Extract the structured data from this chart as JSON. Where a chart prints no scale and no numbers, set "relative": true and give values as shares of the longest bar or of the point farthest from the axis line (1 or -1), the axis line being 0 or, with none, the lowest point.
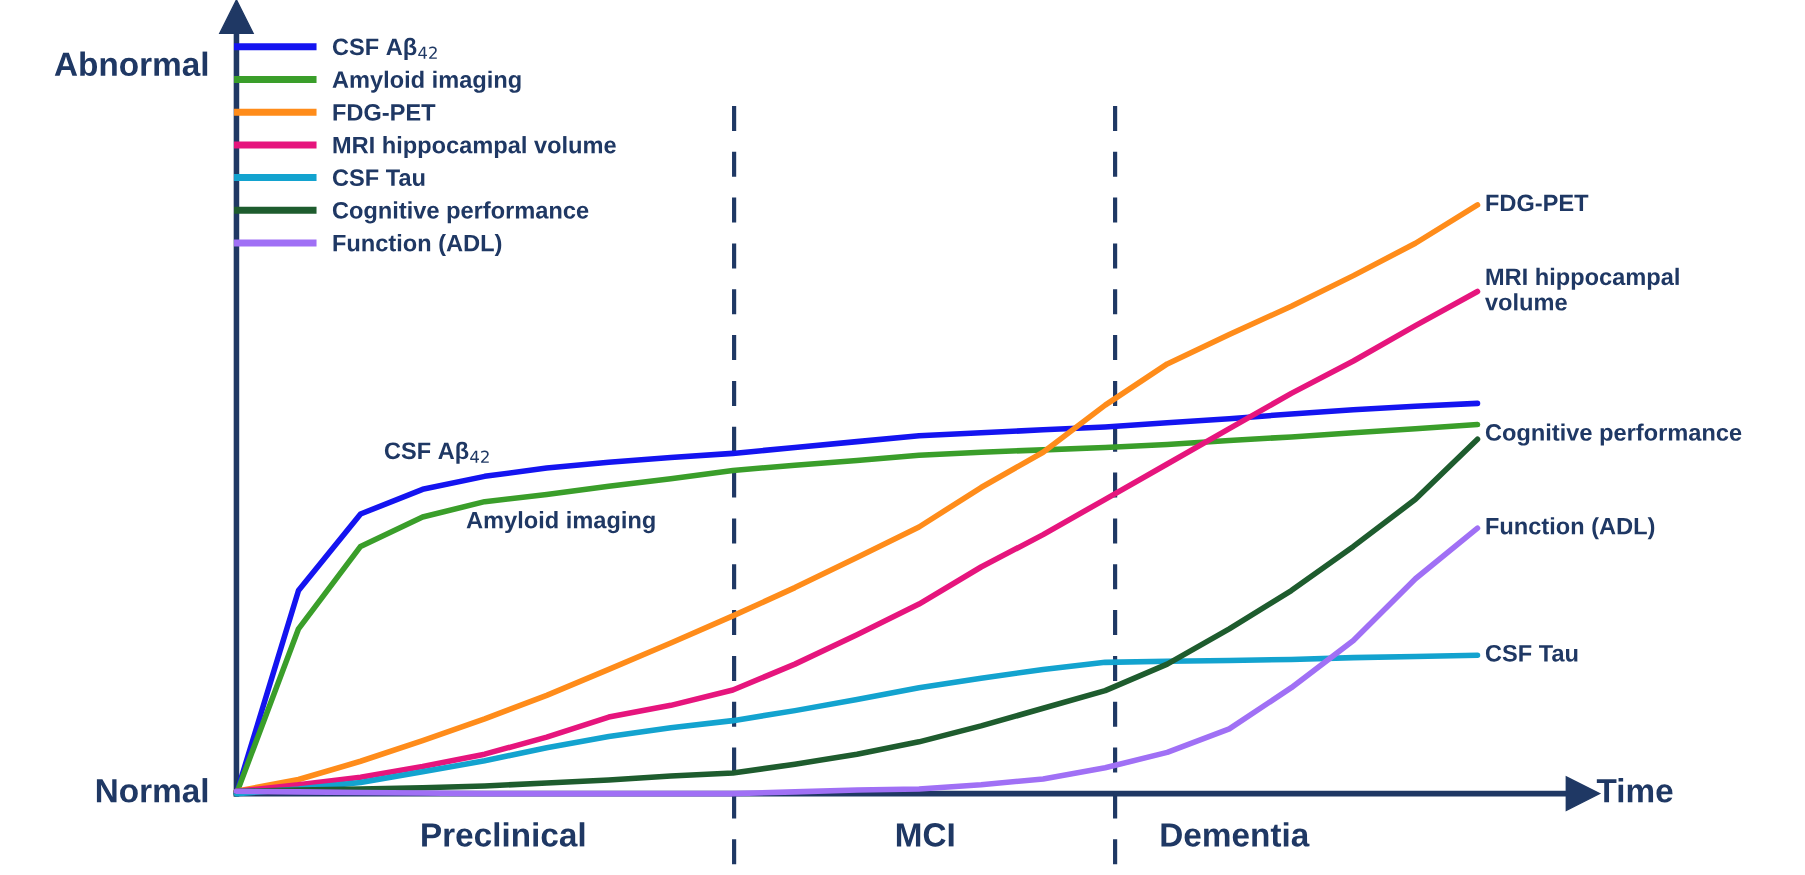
{
  "chart_data": {
    "type": "line",
    "relative": true,
    "xlabel": "Time",
    "legend": "top left",
    "marker": "none",
    "line_style": "solid",
    "categories": [
      null,
      null,
      null,
      null,
      null,
      null,
      null,
      null,
      null,
      null,
      null,
      null,
      null,
      null,
      null,
      null,
      null,
      null,
      null,
      null,
      null
    ],
    "series": [
      {
        "name": "CSF Aβ$_{42}$",
        "color": "#1414f0",
        "values": [
          0,
          0.345,
          0.475,
          0.517,
          0.539,
          0.553,
          0.563,
          0.571,
          0.578,
          0.588,
          0.598,
          0.608,
          0.613,
          0.618,
          0.623,
          0.63,
          0.637,
          0.645,
          0.652,
          0.658,
          0.663
        ]
      },
      {
        "name": "Amyloid imaging",
        "color": "#3a9e2a",
        "values": [
          0,
          0.28,
          0.42,
          0.47,
          0.496,
          0.508,
          0.522,
          0.535,
          0.549,
          0.558,
          0.566,
          0.575,
          0.58,
          0.584,
          0.588,
          0.593,
          0.6,
          0.606,
          0.613,
          0.62,
          0.627
        ]
      },
      {
        "name": "FDG-PET",
        "color": "#ff8c1a",
        "values": [
          0.004,
          0.024,
          0.055,
          0.09,
          0.127,
          0.167,
          0.211,
          0.256,
          0.302,
          0.35,
          0.401,
          0.453,
          0.52,
          0.58,
          0.66,
          0.73,
          0.78,
          0.828,
          0.88,
          0.935,
          1
        ]
      },
      {
        "name": "MRI hippocampal volume",
        "color": "#e6157d",
        "values": [
          0.004,
          0.015,
          0.028,
          0.046,
          0.067,
          0.096,
          0.13,
          0.15,
          0.176,
          0.22,
          0.27,
          0.322,
          0.385,
          0.44,
          0.5,
          0.56,
          0.62,
          0.68,
          0.735,
          0.795,
          0.853
        ]
      },
      {
        "name": "CSF Tau",
        "color": "#13a3cf",
        "values": [
          0,
          0.008,
          0.019,
          0.037,
          0.056,
          0.078,
          0.097,
          0.112,
          0.124,
          0.141,
          0.16,
          0.18,
          0.196,
          0.211,
          0.223,
          0.225,
          0.226,
          0.228,
          0.231,
          0.233,
          0.235
        ]
      },
      {
        "name": "Cognitive performance",
        "color": "#1e5c2e",
        "values": [
          0.004,
          0.006,
          0.008,
          0.01,
          0.013,
          0.018,
          0.023,
          0.03,
          0.035,
          0.05,
          0.067,
          0.088,
          0.115,
          0.145,
          0.175,
          0.22,
          0.28,
          0.345,
          0.42,
          0.5,
          0.602
        ]
      },
      {
        "name": "Function (ADL)",
        "color": "#a070f5",
        "values": [
          0.004,
          0.003,
          0.002,
          0.001,
          0,
          0,
          0,
          0,
          0,
          0.003,
          0.006,
          0.008,
          0.015,
          0.025,
          0.044,
          0.07,
          0.11,
          0.18,
          0.26,
          0.365,
          0.451
        ]
      }
    ],
    "annotations": [
      "Abnormal",
      "Normal",
      "Preclinical",
      "MCI",
      "Dementia",
      "CSF Aβ$_{42}$",
      "Amyloid imaging",
      "FDG-PET",
      "MRI hippocampal\nvolume",
      "Cognitive performance",
      "Function (ADL)",
      "CSF Tau"
    ]
  }
}
